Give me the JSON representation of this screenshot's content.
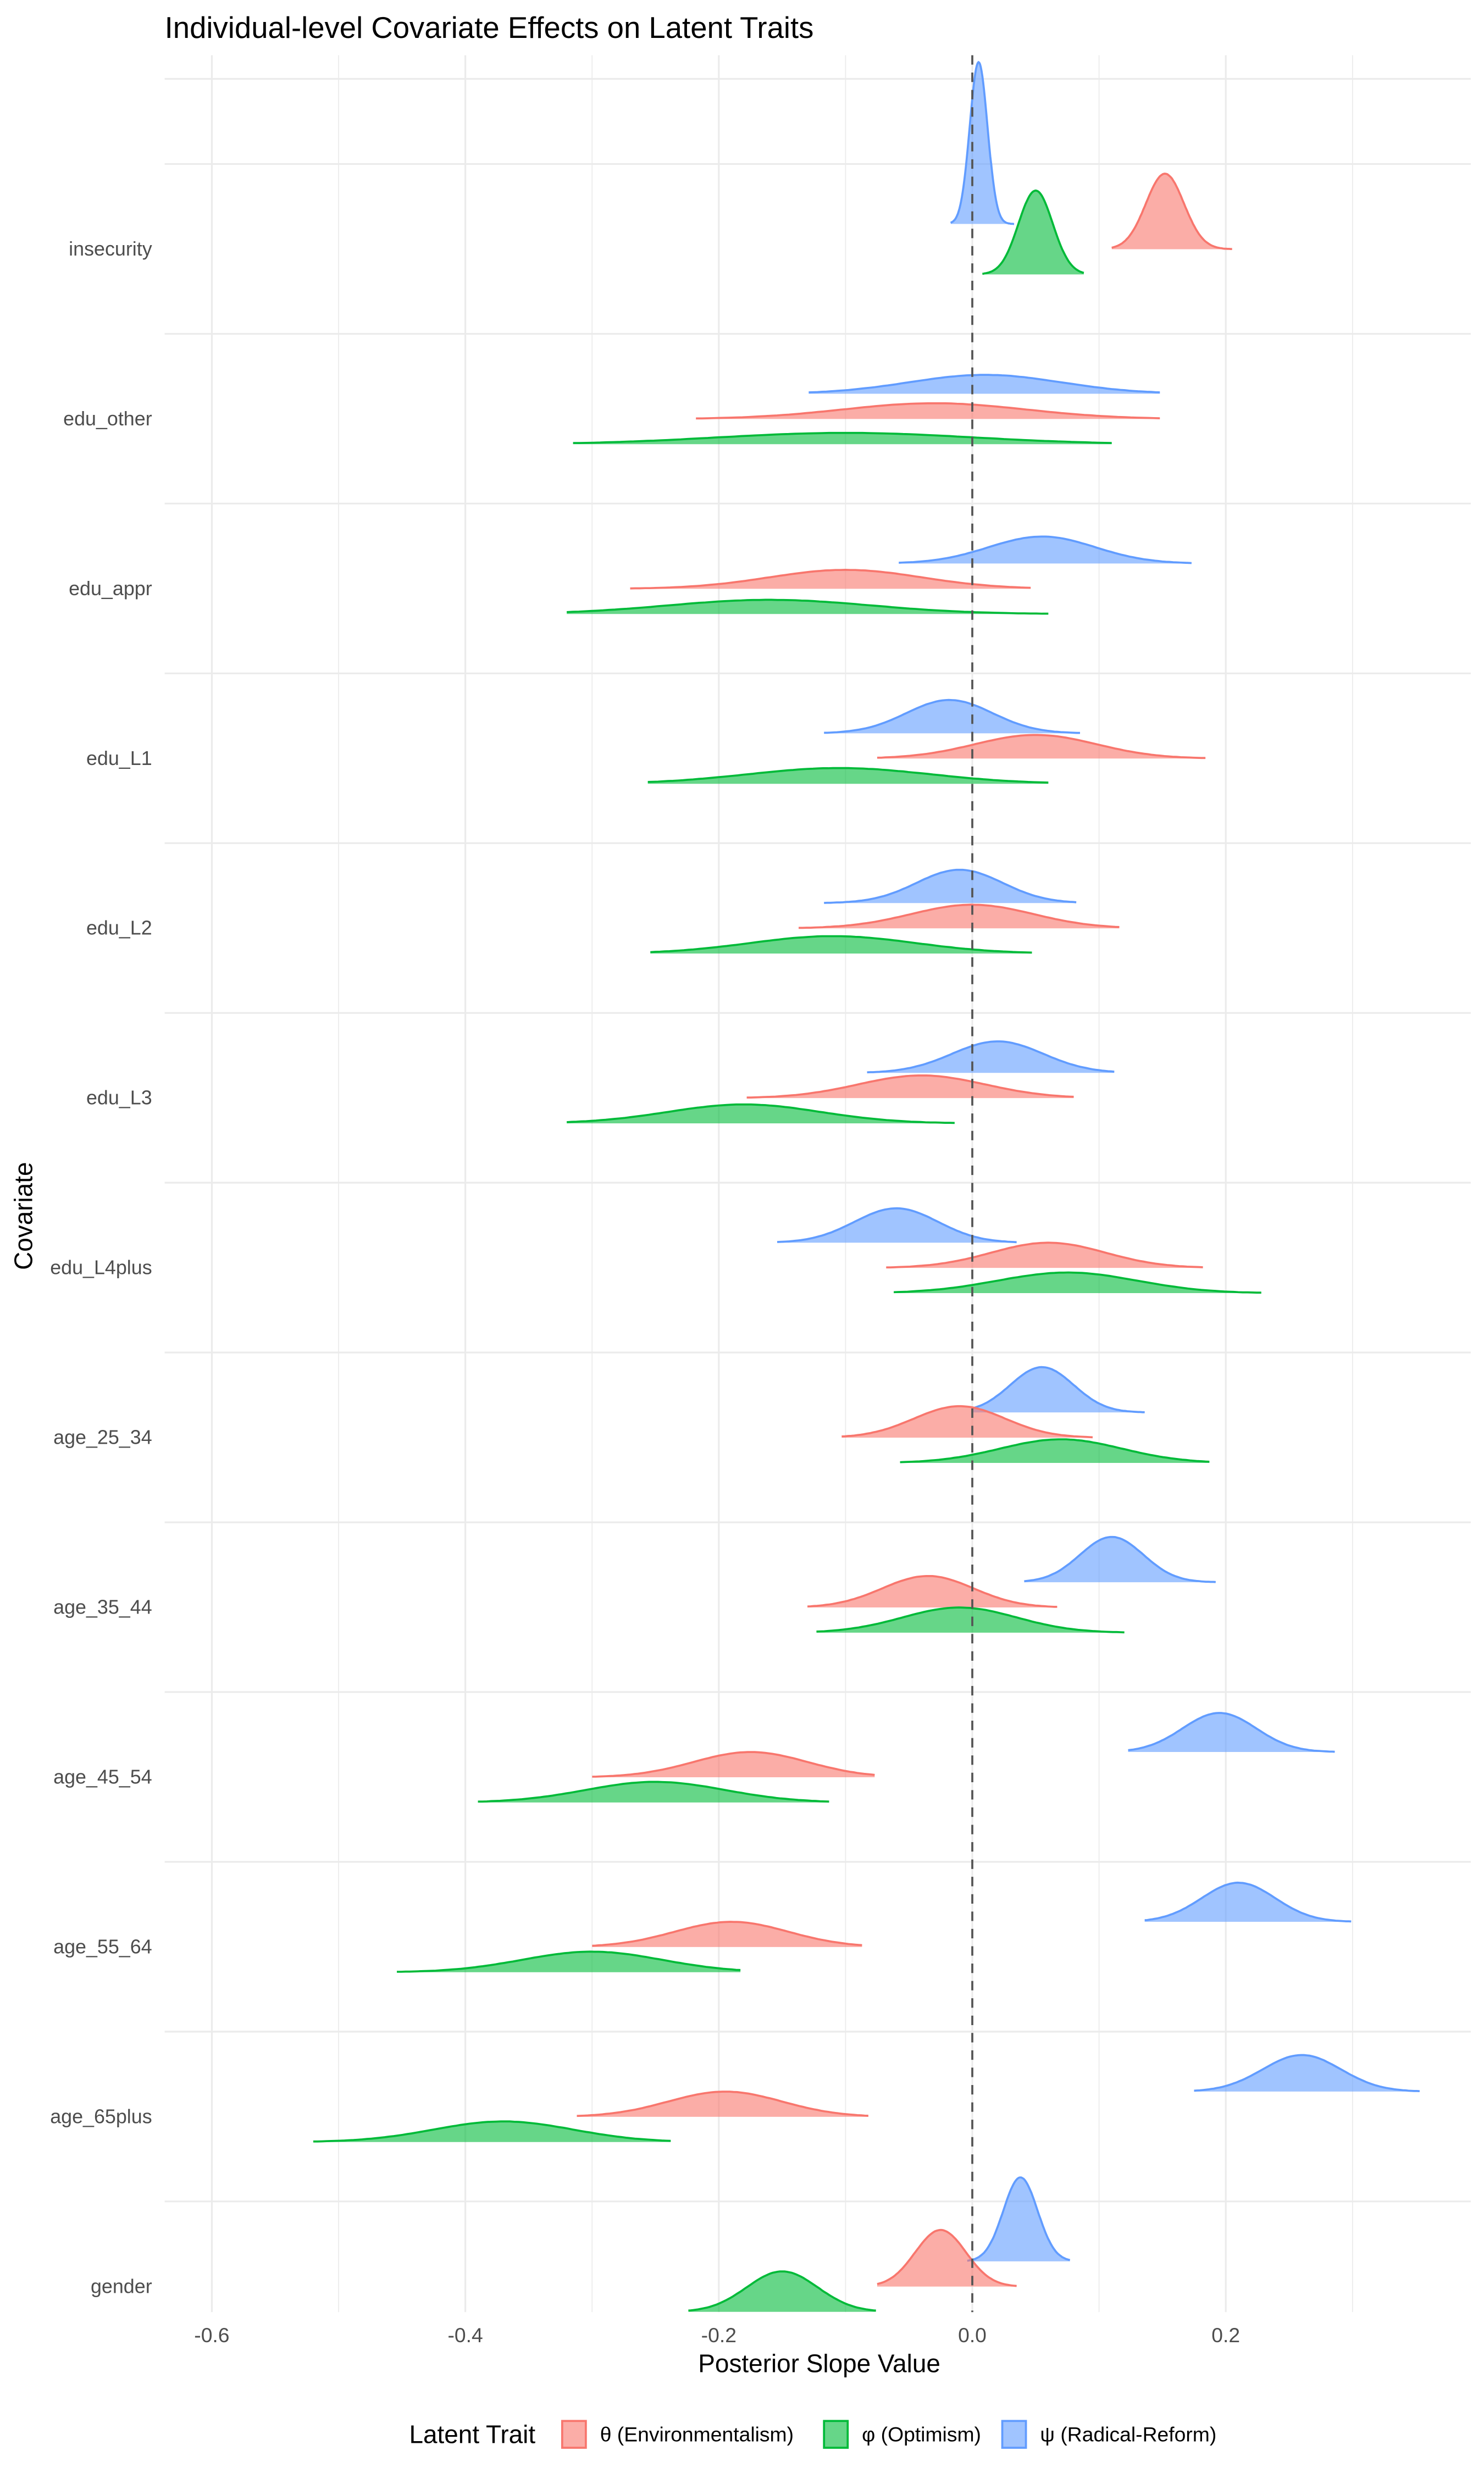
{
  "chart_data": {
    "type": "area",
    "subtype": "ridgeline-density",
    "title": "Individual-level Covariate Effects on Latent Traits",
    "xlabel": "Posterior Slope Value",
    "ylabel": "Covariate",
    "xlim": [
      -0.64,
      0.393
    ],
    "xticks": [
      "-0.6",
      "-0.4",
      "-0.2",
      "0.0",
      "0.2"
    ],
    "xtick_values": [
      -0.6,
      -0.4,
      -0.2,
      0.0,
      0.2
    ],
    "reference_line": {
      "x": 0,
      "style": "dashed",
      "color": "#555555"
    },
    "grid": true,
    "categories": [
      "insecurity",
      "edu_other",
      "edu_appr",
      "edu_L1",
      "edu_L2",
      "edu_L3",
      "edu_L4plus",
      "age_25_34",
      "age_35_44",
      "age_45_54",
      "age_55_64",
      "age_65plus",
      "gender"
    ],
    "legend": {
      "title": "Latent Trait",
      "position": "bottom"
    },
    "series": [
      {
        "name": "ψ (Radical-Reform)",
        "color": "#619CFF",
        "mean": [
          0.005,
          0.01,
          0.055,
          -0.018,
          -0.01,
          0.02,
          -0.06,
          0.055,
          0.11,
          0.195,
          0.21,
          0.26,
          0.038
        ],
        "sd": [
          0.007,
          0.06,
          0.042,
          0.034,
          0.034,
          0.036,
          0.033,
          0.025,
          0.025,
          0.029,
          0.029,
          0.031,
          0.0135
        ],
        "min": [
          -0.017,
          -0.129,
          -0.058,
          -0.117,
          -0.117,
          -0.083,
          -0.154,
          0.0,
          0.041,
          0.123,
          0.136,
          0.175,
          -0.004
        ],
        "max": [
          0.033,
          0.148,
          0.173,
          0.085,
          0.082,
          0.112,
          0.035,
          0.136,
          0.192,
          0.286,
          0.299,
          0.353,
          0.077
        ]
      },
      {
        "name": "θ (Environmentalism)",
        "color": "#F8766D",
        "mean": [
          0.152,
          -0.03,
          -0.1,
          0.05,
          0.0,
          -0.04,
          0.06,
          -0.01,
          -0.035,
          -0.175,
          -0.19,
          -0.195,
          -0.025
        ],
        "sd": [
          0.015,
          0.072,
          0.06,
          0.048,
          0.048,
          0.05,
          0.045,
          0.036,
          0.036,
          0.045,
          0.045,
          0.045,
          0.02
        ],
        "min": [
          0.11,
          -0.218,
          -0.27,
          -0.075,
          -0.137,
          -0.178,
          -0.068,
          -0.103,
          -0.13,
          -0.3,
          -0.3,
          -0.312,
          -0.075
        ],
        "max": [
          0.205,
          0.148,
          0.046,
          0.184,
          0.116,
          0.08,
          0.182,
          0.095,
          0.067,
          -0.077,
          -0.087,
          -0.082,
          0.035
        ]
      },
      {
        "name": "φ (Optimism)",
        "color": "#00BA38",
        "mean": [
          0.05,
          -0.1,
          -0.16,
          -0.105,
          -0.11,
          -0.18,
          0.075,
          0.07,
          -0.01,
          -0.25,
          -0.3,
          -0.37,
          -0.15
        ],
        "sd": [
          0.0135,
          0.1,
          0.08,
          0.072,
          0.065,
          0.06,
          0.055,
          0.048,
          0.045,
          0.055,
          0.055,
          0.055,
          0.028
        ],
        "min": [
          0.008,
          -0.315,
          -0.32,
          -0.256,
          -0.254,
          -0.32,
          -0.062,
          -0.057,
          -0.123,
          -0.39,
          -0.454,
          -0.52,
          -0.224
        ],
        "max": [
          0.088,
          0.11,
          0.06,
          0.06,
          0.047,
          -0.014,
          0.228,
          0.187,
          0.12,
          -0.113,
          -0.183,
          -0.238,
          -0.076
        ]
      }
    ],
    "legend_order": [
      1,
      2,
      0
    ]
  }
}
